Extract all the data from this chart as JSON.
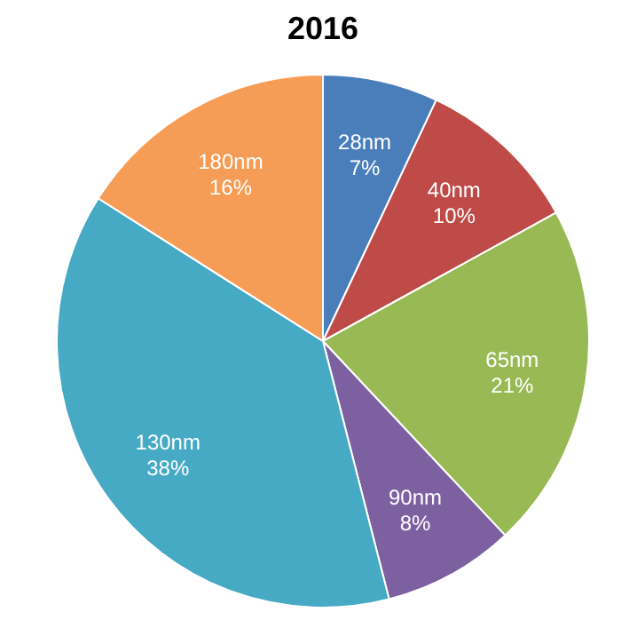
{
  "chart_data": {
    "type": "pie",
    "title": "2016",
    "categories": [
      "28nm",
      "40nm",
      "65nm",
      "90nm",
      "130nm",
      "180nm"
    ],
    "values": [
      7,
      10,
      21,
      8,
      38,
      16
    ],
    "value_labels": [
      "7%",
      "10%",
      "21%",
      "8%",
      "38%",
      "16%"
    ],
    "colors": [
      "#4a7ebb",
      "#be4b48",
      "#98b954",
      "#7d60a0",
      "#46aac5",
      "#f59d56"
    ],
    "legend": false
  }
}
